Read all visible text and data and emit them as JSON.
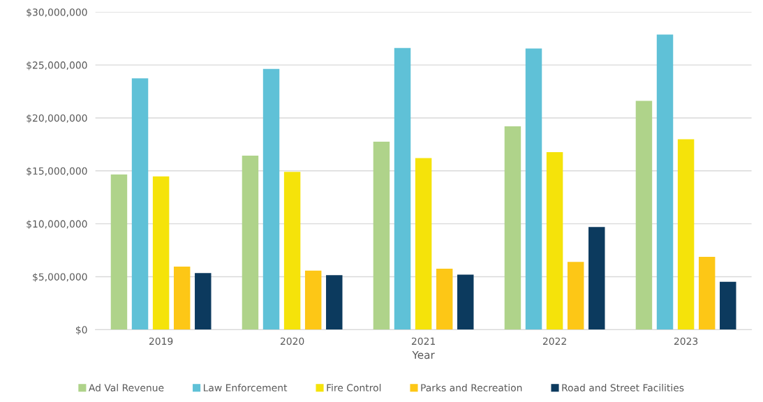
{
  "chart_data": {
    "type": "bar",
    "xlabel": "Year",
    "categories": [
      "2019",
      "2020",
      "2021",
      "2022",
      "2023"
    ],
    "series": [
      {
        "name": "Ad Val Revenue",
        "color": "#afd38a",
        "values": [
          14650000,
          16430000,
          17750000,
          19210000,
          21620000
        ]
      },
      {
        "name": "Law Enforcement",
        "color": "#5fc1d7",
        "values": [
          23740000,
          24630000,
          26600000,
          26550000,
          27880000
        ]
      },
      {
        "name": "Fire Control",
        "color": "#f5e30a",
        "values": [
          14470000,
          14910000,
          16200000,
          16770000,
          17990000
        ]
      },
      {
        "name": "Parks and Recreation",
        "color": "#fdc716",
        "values": [
          5950000,
          5570000,
          5760000,
          6400000,
          6880000
        ]
      },
      {
        "name": "Road and Street Facilities",
        "color": "#0c3a5e",
        "values": [
          5350000,
          5150000,
          5200000,
          9690000,
          4520000
        ]
      }
    ],
    "ylim": [
      0,
      30000000
    ],
    "yticks": [
      {
        "value": 0,
        "label": "$0"
      },
      {
        "value": 5000000,
        "label": "$5,000,000"
      },
      {
        "value": 10000000,
        "label": "$10,000,000"
      },
      {
        "value": 15000000,
        "label": "$15,000,000"
      },
      {
        "value": 20000000,
        "label": "$20,000,000"
      },
      {
        "value": 25000000,
        "label": "$25,000,000"
      },
      {
        "value": 30000000,
        "label": "$30,000,000"
      }
    ],
    "grid": "y",
    "legend": "bottom"
  }
}
